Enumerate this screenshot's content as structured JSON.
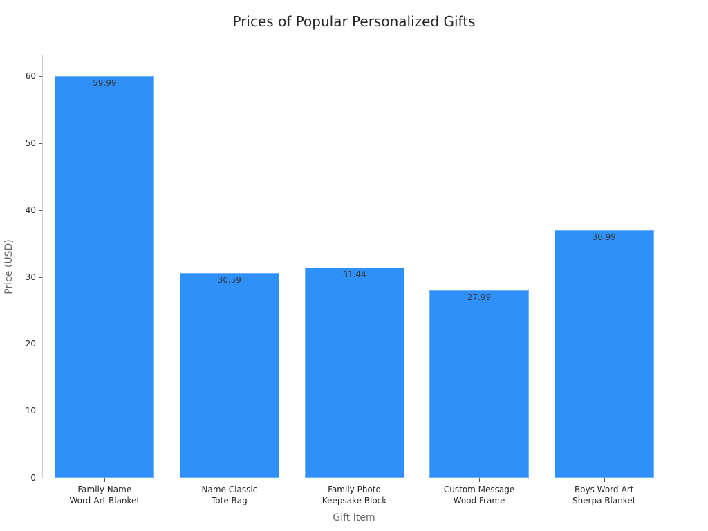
{
  "chart_data": {
    "type": "bar",
    "title": "Prices of Popular Personalized Gifts",
    "xlabel": "Gift Item",
    "ylabel": "Price (USD)",
    "categories": [
      "Family Name Word-Art Blanket",
      "Name Classic Tote Bag",
      "Family Photo Keepsake Block",
      "Custom Message Wood Frame",
      "Boys Word-Art Sherpa Blanket"
    ],
    "category_lines": [
      [
        "Family Name",
        "Word-Art Blanket"
      ],
      [
        "Name Classic",
        "Tote Bag"
      ],
      [
        "Family Photo",
        "Keepsake Block"
      ],
      [
        "Custom Message",
        "Wood Frame"
      ],
      [
        "Boys Word-Art",
        "Sherpa Blanket"
      ]
    ],
    "values": [
      59.99,
      30.59,
      31.44,
      27.99,
      36.99
    ],
    "value_labels": [
      "59.99",
      "30.59",
      "31.44",
      "27.99",
      "36.99"
    ],
    "ylim": [
      0,
      63
    ],
    "yticks": [
      0,
      10,
      20,
      30,
      40,
      50,
      60
    ],
    "grid": false,
    "legend": null,
    "bar_color": "#2f90f8"
  }
}
